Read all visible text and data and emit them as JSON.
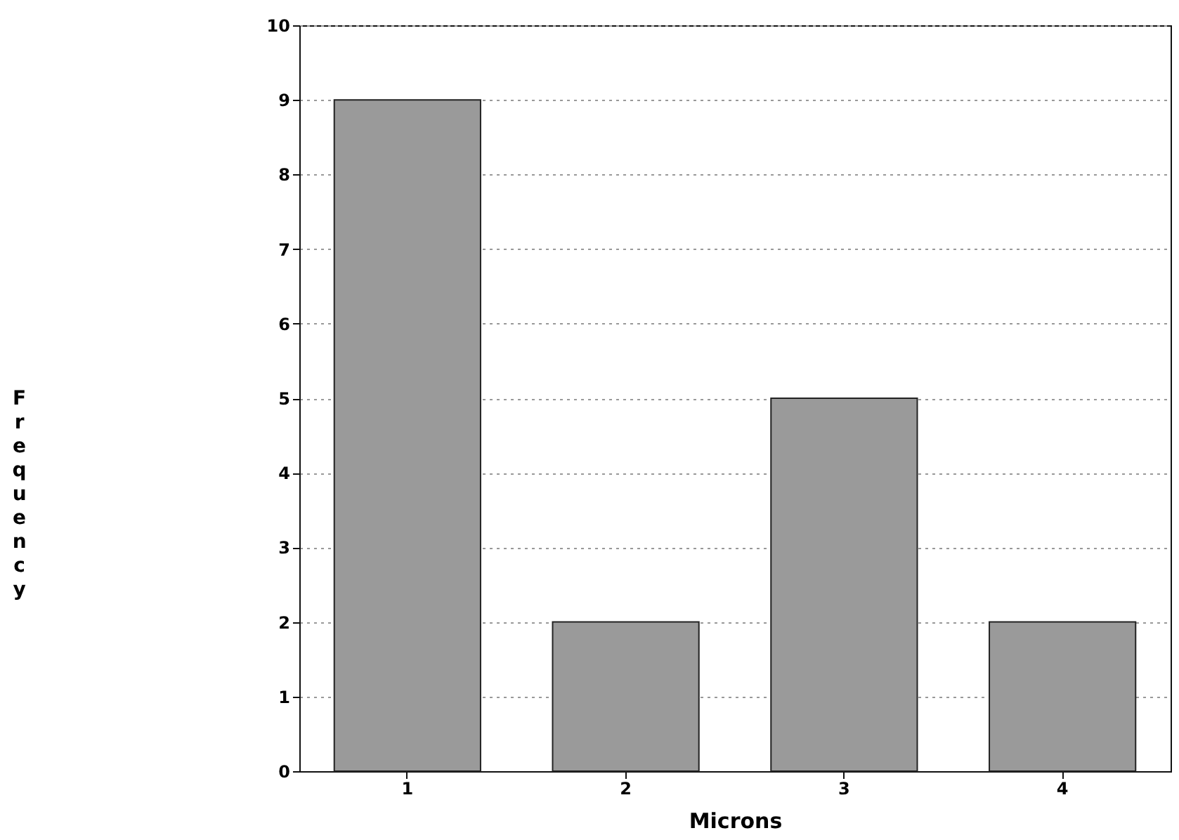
{
  "chart_data": {
    "type": "bar",
    "xlabel": "Microns",
    "ylabel": "Frequency",
    "categories": [
      "1",
      "2",
      "3",
      "4"
    ],
    "values": [
      9,
      2,
      5,
      2
    ],
    "color": "#9a9a9a",
    "ylim": [
      0,
      10
    ],
    "yticks": [
      0,
      1,
      2,
      3,
      4,
      5,
      6,
      7,
      8,
      9,
      10
    ],
    "grid": "y"
  }
}
